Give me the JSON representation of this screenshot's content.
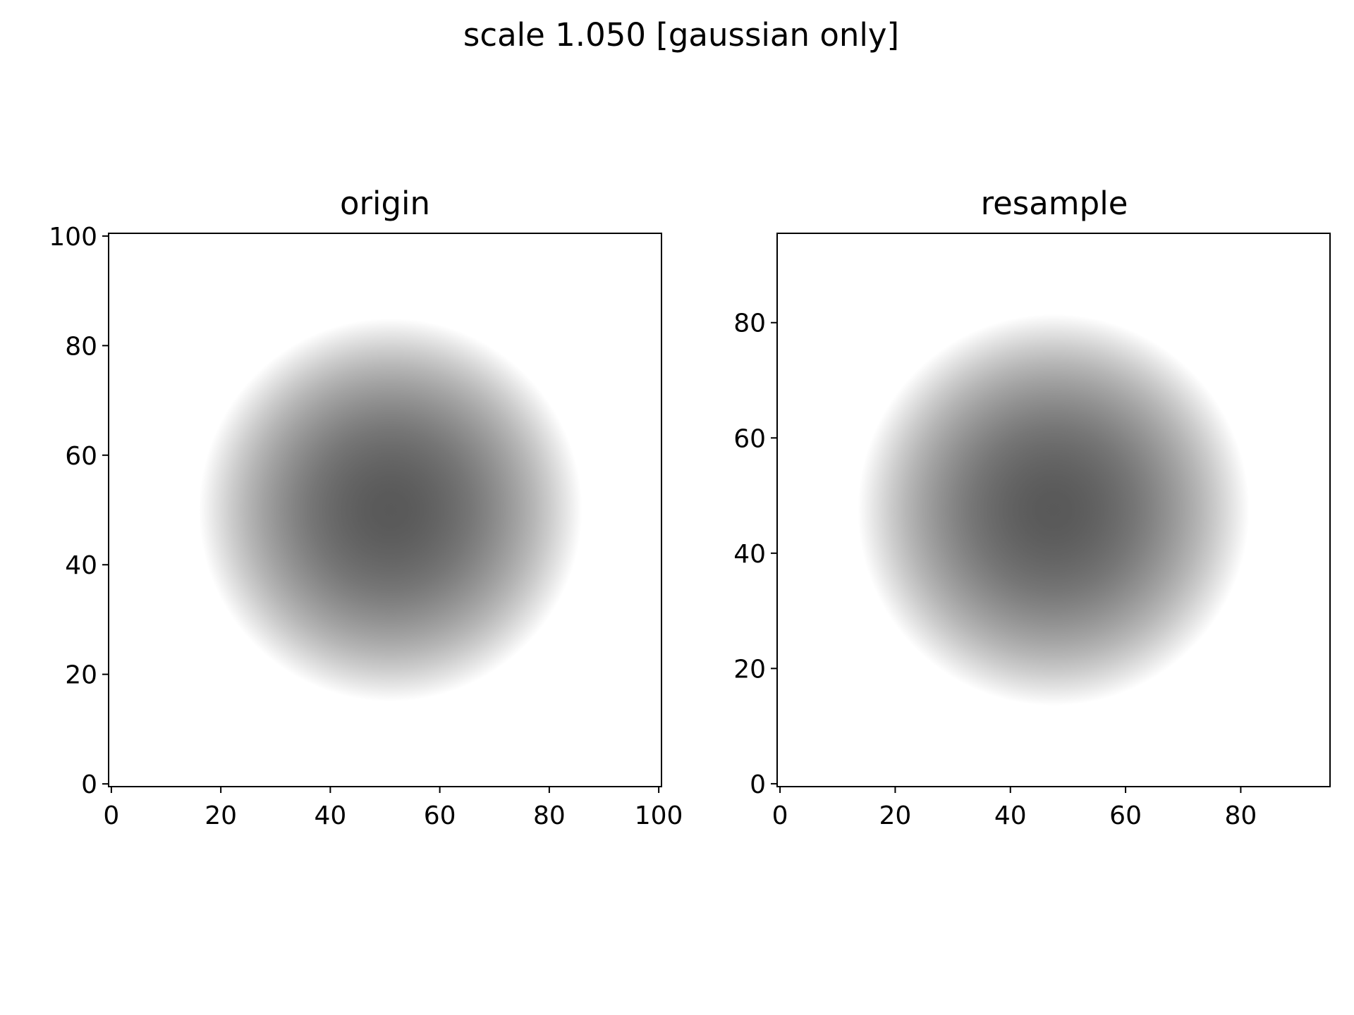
{
  "figure": {
    "suptitle": "scale 1.050 [gaussian only]"
  },
  "chart_data": [
    {
      "type": "heatmap",
      "title": "origin",
      "xlabel": "",
      "ylabel": "",
      "xlim": [
        -0.5,
        100.5
      ],
      "ylim": [
        -0.5,
        100.5
      ],
      "xticks": [
        0,
        20,
        40,
        60,
        80,
        100
      ],
      "yticks": [
        0,
        20,
        40,
        60,
        80,
        100
      ],
      "grid": false,
      "colormap": "Greys",
      "field": {
        "shape": "gaussian disk",
        "center": [
          51,
          50
        ],
        "radius": 35,
        "peak_intensity": 0.65
      }
    },
    {
      "type": "heatmap",
      "title": "resample",
      "xlabel": "",
      "ylabel": "",
      "xlim": [
        -0.5,
        95.5
      ],
      "ylim": [
        -0.5,
        95.5
      ],
      "xticks": [
        0,
        20,
        40,
        60,
        80
      ],
      "yticks": [
        0,
        20,
        40,
        60,
        80
      ],
      "grid": false,
      "colormap": "Greys",
      "field": {
        "shape": "gaussian disk",
        "center": [
          47.5,
          47.5
        ],
        "radius": 34,
        "peak_intensity": 0.65
      }
    }
  ]
}
